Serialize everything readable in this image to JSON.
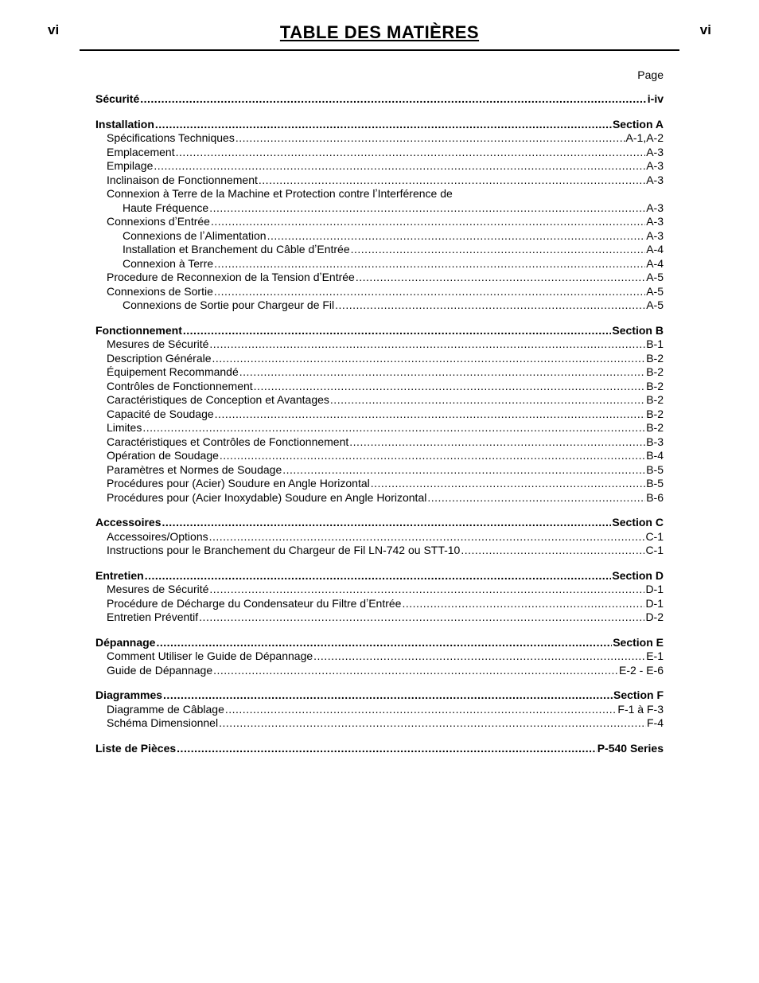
{
  "meta": {
    "page_number_left": "vi",
    "page_number_right": "vi",
    "title": "TABLE DES MATIÈRES",
    "page_column_label": "Page",
    "title_fontsize": 22,
    "body_fontsize": 14,
    "text_color": "#000000",
    "background_color": "#ffffff",
    "rule_color": "#000000"
  },
  "groups": [
    {
      "rows": [
        {
          "label": "Sécurité",
          "page": "i-iv",
          "bold": true,
          "indent": 0
        }
      ]
    },
    {
      "rows": [
        {
          "label": "Installation",
          "page": "Section A",
          "bold": true,
          "indent": 0
        },
        {
          "label": "Spécifications Techniques",
          "page": "A-1,A-2",
          "bold": false,
          "indent": 1
        },
        {
          "label": "Emplacement",
          "page": "A-3",
          "bold": false,
          "indent": 1
        },
        {
          "label": "Empilage",
          "page": "A-3",
          "bold": false,
          "indent": 1
        },
        {
          "label": "Inclinaison de Fonctionnement",
          "page": "A-3",
          "bold": false,
          "indent": 1
        },
        {
          "label": "Connexion à Terre de la Machine et Protection contre lʼInterférence de",
          "page": "",
          "bold": false,
          "indent": 1,
          "no_dots": true
        },
        {
          "label": "Haute Fréquence",
          "page": "A-3",
          "bold": false,
          "indent": 2
        },
        {
          "label": "Connexions dʼEntrée",
          "page": "A-3",
          "bold": false,
          "indent": 1
        },
        {
          "label": "Connexions de lʼAlimentation",
          "page": "A-3",
          "bold": false,
          "indent": 2
        },
        {
          "label": "Installation et Branchement du Câble dʼEntrée",
          "page": "A-4",
          "bold": false,
          "indent": 2
        },
        {
          "label": "Connexion à Terre",
          "page": "A-4",
          "bold": false,
          "indent": 2
        },
        {
          "label": "Procedure de Reconnexion de la Tension dʼEntrée",
          "page": "A-5",
          "bold": false,
          "indent": 1
        },
        {
          "label": "Connexions de Sortie",
          "page": "A-5",
          "bold": false,
          "indent": 1
        },
        {
          "label": "Connexions de Sortie pour Chargeur de Fil",
          "page": "A-5",
          "bold": false,
          "indent": 2
        }
      ]
    },
    {
      "rows": [
        {
          "label": "Fonctionnement",
          "page": "Section B",
          "bold": true,
          "indent": 0
        },
        {
          "label": "Mesures de Sécurité",
          "page": "B-1",
          "bold": false,
          "indent": 1
        },
        {
          "label": "Description Générale",
          "page": "B-2",
          "bold": false,
          "indent": 1
        },
        {
          "label": "Équipement Recommandé",
          "page": "B-2",
          "bold": false,
          "indent": 1
        },
        {
          "label": "Contrôles de Fonctionnement",
          "page": "B-2",
          "bold": false,
          "indent": 1
        },
        {
          "label": "Caractéristiques de Conception et Avantages",
          "page": "B-2",
          "bold": false,
          "indent": 1
        },
        {
          "label": "Capacité de Soudage",
          "page": "B-2",
          "bold": false,
          "indent": 1
        },
        {
          "label": "Limites",
          "page": "B-2",
          "bold": false,
          "indent": 1
        },
        {
          "label": "Caractéristiques et Contrôles de Fonctionnement",
          "page": "B-3",
          "bold": false,
          "indent": 1
        },
        {
          "label": "Opération de Soudage",
          "page": "B-4",
          "bold": false,
          "indent": 1
        },
        {
          "label": "Paramètres et Normes de Soudage",
          "page": "B-5",
          "bold": false,
          "indent": 1
        },
        {
          "label": "Procédures pour (Acier) Soudure en Angle Horizontal",
          "page": "B-5",
          "bold": false,
          "indent": 1
        },
        {
          "label": "Procédures pour (Acier Inoxydable) Soudure en Angle Horizontal",
          "page": "B-6",
          "bold": false,
          "indent": 1
        }
      ]
    },
    {
      "rows": [
        {
          "label": "Accessoires",
          "page": "Section C",
          "bold": true,
          "indent": 0
        },
        {
          "label": "Accessoires/Options",
          "page": "C-1",
          "bold": false,
          "indent": 1
        },
        {
          "label": "Instructions pour le Branchement du Chargeur de Fil LN-742 ou STT-10",
          "page": "C-1",
          "bold": false,
          "indent": 1
        }
      ]
    },
    {
      "rows": [
        {
          "label": "Entretien",
          "page": "Section D",
          "bold": true,
          "indent": 0
        },
        {
          "label": "Mesures de Sécurité",
          "page": "D-1",
          "bold": false,
          "indent": 1
        },
        {
          "label": "Procédure de Décharge du Condensateur du Filtre dʼEntrée",
          "page": "D-1",
          "bold": false,
          "indent": 1
        },
        {
          "label": "Entretien Préventif",
          "page": "D-2",
          "bold": false,
          "indent": 1
        }
      ]
    },
    {
      "rows": [
        {
          "label": "Dépannage",
          "page": "Section E",
          "bold": true,
          "indent": 0
        },
        {
          "label": "Comment Utiliser le Guide de Dépannage",
          "page": "E-1",
          "bold": false,
          "indent": 1
        },
        {
          "label": "Guide de Dépannage",
          "page": "E-2 - E-6",
          "bold": false,
          "indent": 1
        }
      ]
    },
    {
      "rows": [
        {
          "label": "Diagrammes",
          "page": "Section F",
          "bold": true,
          "indent": 0
        },
        {
          "label": "Diagramme de Câblage",
          "page": "F-1 à F-3",
          "bold": false,
          "indent": 1
        },
        {
          "label": "Schéma Dimensionnel",
          "page": "F-4",
          "bold": false,
          "indent": 1
        }
      ]
    },
    {
      "rows": [
        {
          "label": "Liste de Pièces",
          "page": "P-540 Series",
          "bold": true,
          "indent": 0
        }
      ]
    }
  ]
}
